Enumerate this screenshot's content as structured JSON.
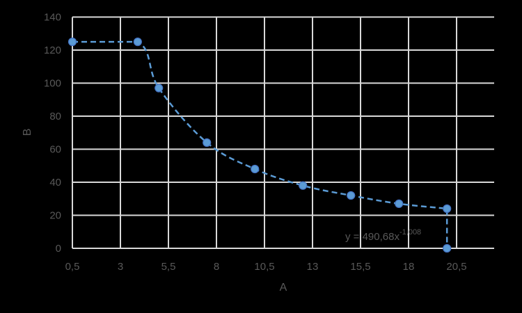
{
  "chart_data": {
    "type": "scatter",
    "title": "",
    "xlabel": "A",
    "ylabel": "B",
    "xlim": [
      0.5,
      22.5
    ],
    "ylim": [
      0,
      140
    ],
    "x_ticks": [
      0.5,
      3,
      5.5,
      8,
      10.5,
      13,
      15.5,
      18,
      20.5
    ],
    "x_tick_labels": [
      "0,5",
      "3",
      "5,5",
      "8",
      "10,5",
      "13",
      "15,5",
      "18",
      "20,5"
    ],
    "y_ticks": [
      0,
      20,
      40,
      60,
      80,
      100,
      120,
      140
    ],
    "y_tick_labels": [
      "0",
      "20",
      "40",
      "60",
      "80",
      "100",
      "120",
      "140"
    ],
    "grid": true,
    "legend": null,
    "series": [
      {
        "name": "B",
        "line_style": "dashed",
        "smooth": true,
        "marker": "circle",
        "color": "#5B9BD5",
        "marker_edge_color": "#4472C4",
        "x": [
          0.5,
          3.9,
          5,
          7.5,
          10,
          12.5,
          15,
          17.5,
          20,
          20
        ],
        "y": [
          125,
          125,
          97,
          64,
          48,
          38,
          32,
          27,
          24,
          0
        ]
      }
    ],
    "annotations": [
      {
        "text": "y = 490,68x",
        "superscript": "-1,008",
        "x": 15,
        "y": 7,
        "kind": "trendline-equation"
      }
    ]
  },
  "colors": {
    "background": "#000000",
    "grid": "#D9D9D9",
    "text": "#595959",
    "series": "#5B9BD5",
    "marker_edge": "#4472C4"
  }
}
